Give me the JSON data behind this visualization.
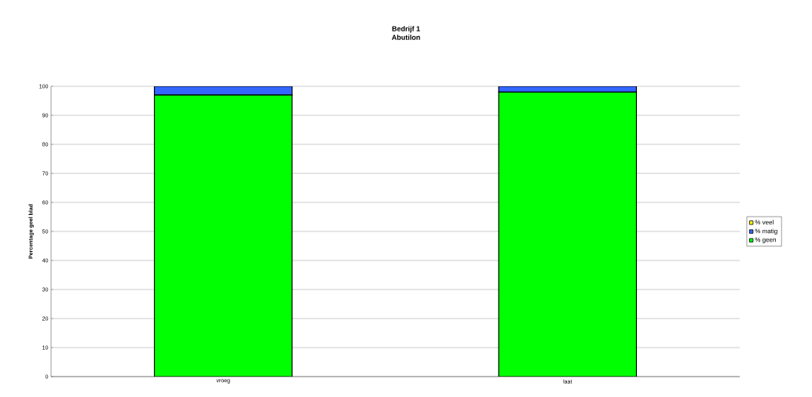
{
  "chart_data": {
    "type": "bar",
    "stacked": true,
    "title": "Bedrijf 1",
    "subtitle": "Abutilon",
    "ylabel": "Percentage geel blad",
    "categories": [
      "vroeg",
      "laat"
    ],
    "series": [
      {
        "name": "% geen",
        "color": "#00ff00",
        "values": [
          97,
          98
        ]
      },
      {
        "name": "% matig",
        "color": "#3366ff",
        "values": [
          3,
          2
        ]
      },
      {
        "name": "% veel",
        "color": "#ffff00",
        "values": [
          0,
          0
        ]
      }
    ],
    "ylim": [
      0,
      100
    ],
    "yticks": [
      0,
      10,
      20,
      30,
      40,
      50,
      60,
      70,
      80,
      90,
      100
    ],
    "grid": "y",
    "legend": "right"
  }
}
